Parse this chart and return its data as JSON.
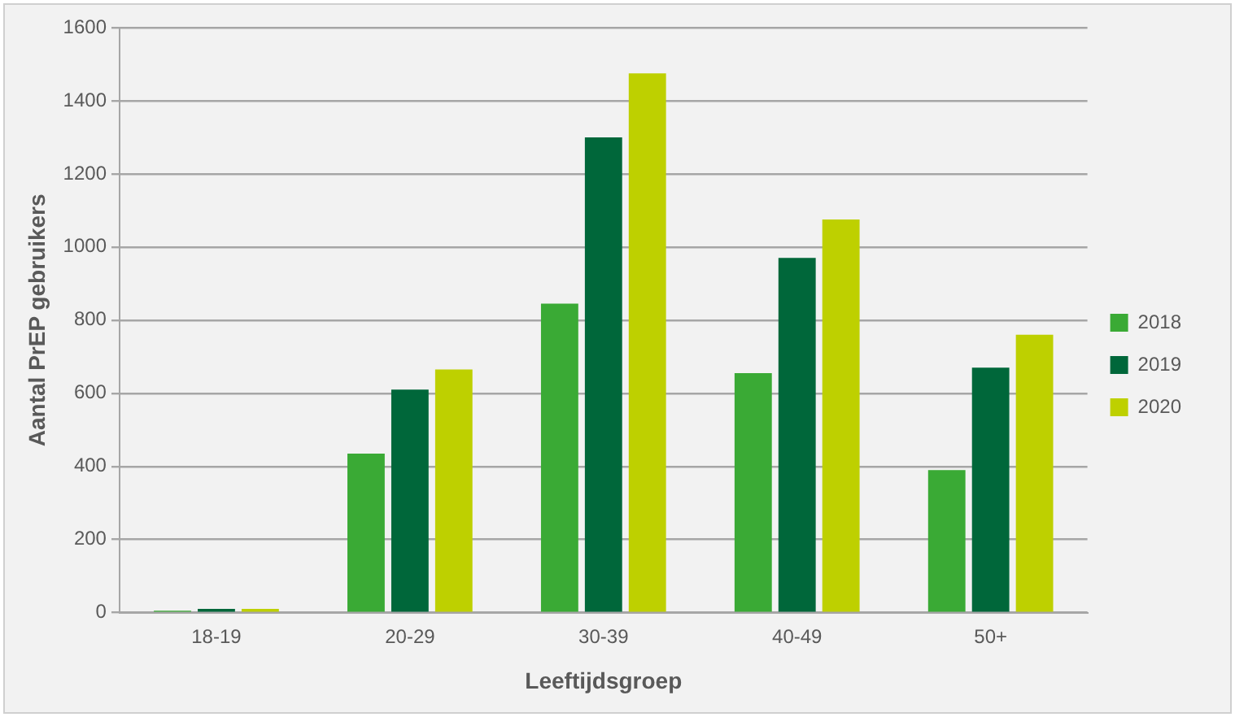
{
  "chart_data": {
    "type": "bar",
    "xlabel": "Leeftijdsgroep",
    "ylabel": "Aantal PrEP gebruikers",
    "categories": [
      "18-19",
      "20-29",
      "30-39",
      "40-49",
      "50+"
    ],
    "series": [
      {
        "name": "2018",
        "color": "#3aaa35",
        "values": [
          5,
          435,
          845,
          655,
          390
        ]
      },
      {
        "name": "2019",
        "color": "#00673a",
        "values": [
          10,
          610,
          1300,
          970,
          670
        ]
      },
      {
        "name": "2020",
        "color": "#bed000",
        "values": [
          10,
          665,
          1475,
          1075,
          760
        ]
      }
    ],
    "ylim": [
      0,
      1600
    ],
    "yticks": [
      0,
      200,
      400,
      600,
      800,
      1000,
      1200,
      1400,
      1600
    ],
    "grid": "y",
    "legend": "right"
  }
}
